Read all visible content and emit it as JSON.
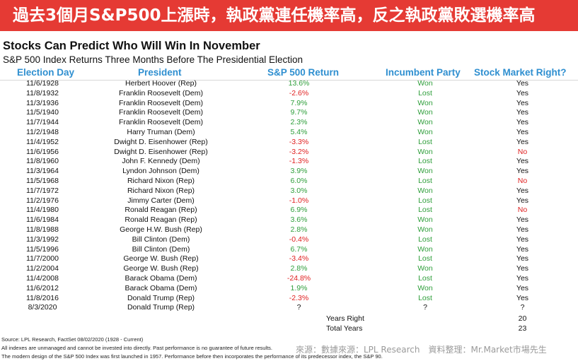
{
  "banner": "過去3個月S&P500上漲時，執政黨連任機率高，反之執政黨敗選機率高",
  "chart_data": {
    "type": "table",
    "title": "Stocks Can Predict Who Will Win In November",
    "subtitle": "S&P 500 Index Returns Three Months Before The Presidential Election",
    "columns": [
      "Election Day",
      "President",
      "S&P 500 Return",
      "Incumbent Party",
      "Stock Market Right?"
    ],
    "rows": [
      {
        "date": "11/6/1928",
        "president": "Herbert Hoover (Rep)",
        "ret": "13.6%",
        "party": "Won",
        "right": "Yes"
      },
      {
        "date": "11/8/1932",
        "president": "Franklin Roosevelt (Dem)",
        "ret": "-2.6%",
        "party": "Lost",
        "right": "Yes"
      },
      {
        "date": "11/3/1936",
        "president": "Franklin Roosevelt (Dem)",
        "ret": "7.9%",
        "party": "Won",
        "right": "Yes"
      },
      {
        "date": "11/5/1940",
        "president": "Franklin Roosevelt (Dem)",
        "ret": "9.7%",
        "party": "Won",
        "right": "Yes"
      },
      {
        "date": "11/7/1944",
        "president": "Franklin Roosevelt (Dem)",
        "ret": "2.3%",
        "party": "Won",
        "right": "Yes"
      },
      {
        "date": "11/2/1948",
        "president": "Harry Truman (Dem)",
        "ret": "5.4%",
        "party": "Won",
        "right": "Yes"
      },
      {
        "date": "11/4/1952",
        "president": "Dwight D. Eisenhower (Rep)",
        "ret": "-3.3%",
        "party": "Lost",
        "right": "Yes"
      },
      {
        "date": "11/6/1956",
        "president": "Dwight D. Eisenhower (Rep)",
        "ret": "-3.2%",
        "party": "Won",
        "right": "No"
      },
      {
        "date": "11/8/1960",
        "president": "John F. Kennedy (Dem)",
        "ret": "-1.3%",
        "party": "Lost",
        "right": "Yes"
      },
      {
        "date": "11/3/1964",
        "president": "Lyndon Johnson (Dem)",
        "ret": "3.9%",
        "party": "Won",
        "right": "Yes"
      },
      {
        "date": "11/5/1968",
        "president": "Richard Nixon (Rep)",
        "ret": "6.0%",
        "party": "Lost",
        "right": "No"
      },
      {
        "date": "11/7/1972",
        "president": "Richard Nixon (Rep)",
        "ret": "3.0%",
        "party": "Won",
        "right": "Yes"
      },
      {
        "date": "11/2/1976",
        "president": "Jimmy Carter (Dem)",
        "ret": "-1.0%",
        "party": "Lost",
        "right": "Yes"
      },
      {
        "date": "11/4/1980",
        "president": "Ronald Reagan (Rep)",
        "ret": "6.9%",
        "party": "Lost",
        "right": "No"
      },
      {
        "date": "11/6/1984",
        "president": "Ronald Reagan (Rep)",
        "ret": "3.6%",
        "party": "Won",
        "right": "Yes"
      },
      {
        "date": "11/8/1988",
        "president": "George H.W. Bush (Rep)",
        "ret": "2.8%",
        "party": "Won",
        "right": "Yes"
      },
      {
        "date": "11/3/1992",
        "president": "Bill Clinton (Dem)",
        "ret": "-0.4%",
        "party": "Lost",
        "right": "Yes"
      },
      {
        "date": "11/5/1996",
        "president": "Bill Clinton (Dem)",
        "ret": "6.7%",
        "party": "Won",
        "right": "Yes"
      },
      {
        "date": "11/7/2000",
        "president": "George W. Bush (Rep)",
        "ret": "-3.4%",
        "party": "Lost",
        "right": "Yes"
      },
      {
        "date": "11/2/2004",
        "president": "George W. Bush (Rep)",
        "ret": "2.8%",
        "party": "Won",
        "right": "Yes"
      },
      {
        "date": "11/4/2008",
        "president": "Barack Obama (Dem)",
        "ret": "-24.8%",
        "party": "Lost",
        "right": "Yes"
      },
      {
        "date": "11/6/2012",
        "president": "Barack Obama (Dem)",
        "ret": "1.9%",
        "party": "Won",
        "right": "Yes"
      },
      {
        "date": "11/8/2016",
        "president": "Donald Trump (Rep)",
        "ret": "-2.3%",
        "party": "Lost",
        "right": "Yes"
      },
      {
        "date": "8/3/2020",
        "president": "Donald Trump (Rep)",
        "ret": "?",
        "party": "?",
        "right": "?"
      }
    ],
    "totals": [
      {
        "label": "Years Right",
        "value": "20"
      },
      {
        "label": "Total Years",
        "value": "23"
      }
    ]
  },
  "colors": {
    "banner_bg": "#e53a34",
    "header": "#2f8fd0",
    "positive": "#2e9e3a",
    "negative": "#e02020",
    "won": "#2e9e3a",
    "lost": "#2e9e3a",
    "no": "#e02020"
  },
  "footnotes": {
    "source": "Source: LPL Research, FactSet 08/02/2020 (1928 - Current)",
    "disclaimer": "All indexes are unmanaged and cannot be invested into directly. Past performance is no guarantee of future results.",
    "design": "The modern design of the S&P 500 Index was first launched in 1957. Performance before then incorporates the performance of its  predecessor index, the S&P 90."
  },
  "credit": "來源：數據來源：LPL Research　資料整理：Mr.Market市場先生"
}
